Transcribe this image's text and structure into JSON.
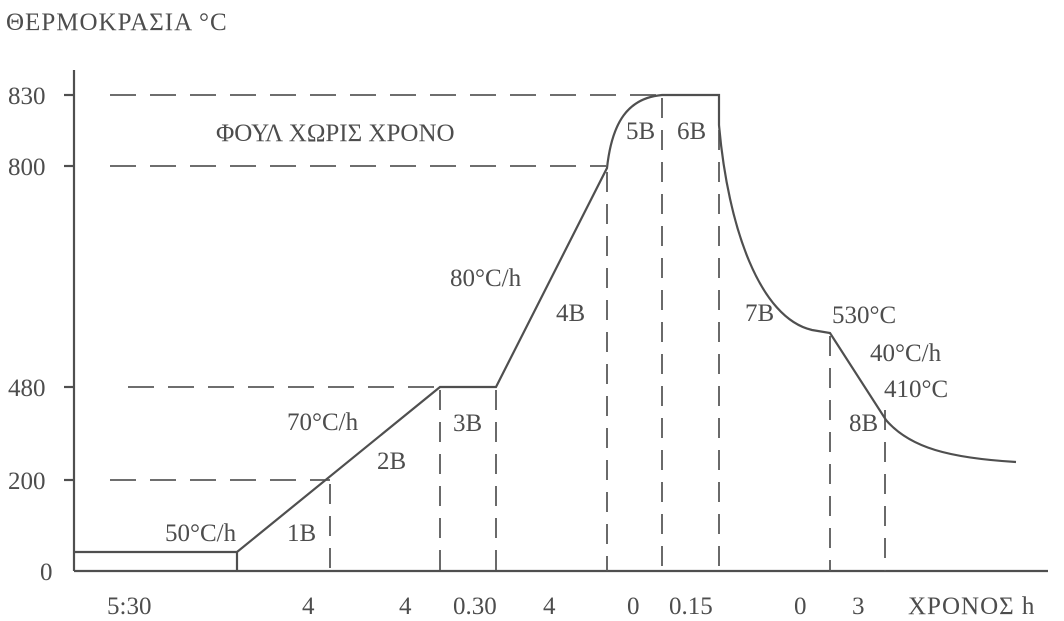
{
  "y_axis_title": "ΘΕΡΜΟΚΡΑΣΙΑ °C",
  "x_axis_title": "ΧΡΟΝΟΣ h",
  "y_ticks": [
    "830",
    "800",
    "480",
    "200",
    "0"
  ],
  "x_time_labels": [
    "5:30",
    "4",
    "4",
    "0.30",
    "4",
    "0",
    "0.15",
    "0",
    "3"
  ],
  "furnace_note": "ΦΟΥΛ ΧΩΡΙΣ ΧΡΟΝΟ",
  "stages": [
    "1B",
    "2B",
    "3B",
    "4B",
    "5B",
    "6B",
    "7B",
    "8B"
  ],
  "rates": {
    "r1": "50°C/h",
    "r2": "70°C/h",
    "r4": "80°C/h",
    "r8": "40°C/h"
  },
  "temps": {
    "t530": "530°C",
    "t410": "410°C"
  }
}
